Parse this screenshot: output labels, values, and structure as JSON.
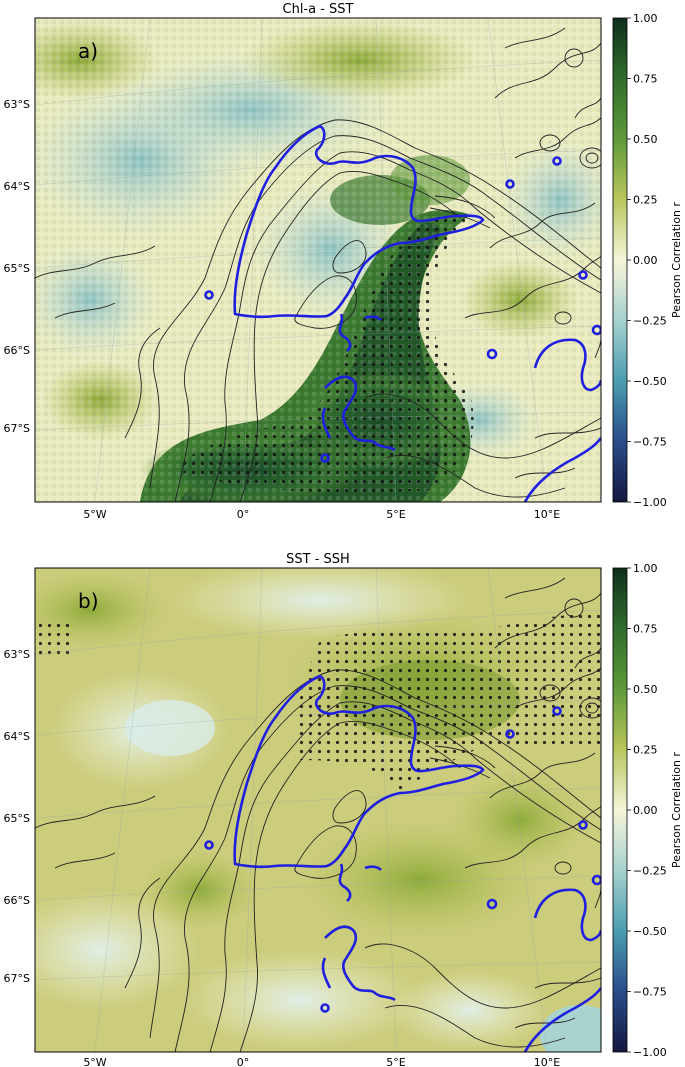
{
  "panels": [
    {
      "id": "a",
      "title": "Chl-a - SST",
      "panel_label": "a)",
      "lat_labels": [
        "63°S",
        "64°S",
        "65°S",
        "66°S",
        "67°S"
      ],
      "lon_labels": [
        "5°W",
        "0°",
        "5°E",
        "10°E"
      ],
      "colorbar": {
        "label": "Pearson Correlation r",
        "ticks": [
          "1.00",
          "0.75",
          "0.50",
          "0.25",
          "0.00",
          "−0.25",
          "−0.50",
          "−0.75",
          "−1.00"
        ],
        "range": [
          -1.0,
          1.0
        ]
      }
    },
    {
      "id": "b",
      "title": "SST - SSH",
      "panel_label": "b)",
      "lat_labels": [
        "63°S",
        "64°S",
        "65°S",
        "66°S",
        "67°S"
      ],
      "lon_labels": [
        "5°W",
        "0°",
        "5°E",
        "10°E"
      ],
      "colorbar": {
        "label": "Pearson Correlation r",
        "ticks": [
          "1.00",
          "0.75",
          "0.50",
          "0.25",
          "0.00",
          "−0.25",
          "−0.50",
          "−0.75",
          "−1.00"
        ],
        "range": [
          -1.0,
          1.0
        ]
      }
    }
  ],
  "colors": {
    "contour_highlight": "#1f1fe0",
    "bathymetry": "#222222",
    "cmap_top": "#0f2e1c",
    "cmap_mid": "#f7f5d9",
    "cmap_bottom": "#13173f"
  }
}
